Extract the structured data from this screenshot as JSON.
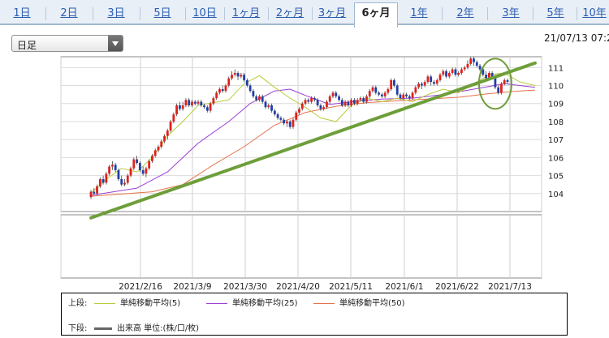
{
  "tabs": [
    {
      "label": "1日",
      "active": false
    },
    {
      "label": "2日",
      "active": false
    },
    {
      "label": "3日",
      "active": false
    },
    {
      "label": "5日",
      "active": false
    },
    {
      "label": "10日",
      "active": false
    },
    {
      "label": "1ヶ月",
      "active": false
    },
    {
      "label": "2ヶ月",
      "active": false
    },
    {
      "label": "3ヶ月",
      "active": false
    },
    {
      "label": "6ヶ月",
      "active": true
    },
    {
      "label": "1年",
      "active": false
    },
    {
      "label": "2年",
      "active": false
    },
    {
      "label": "3年",
      "active": false
    },
    {
      "label": "5年",
      "active": false
    },
    {
      "label": "10年",
      "active": false
    }
  ],
  "period_select": {
    "value": "日足"
  },
  "timestamp": "21/07/13 07:2",
  "colors": {
    "tab_link": "#2a5db0",
    "candle_up": "#e0201c",
    "candle_down": "#1f3fa8",
    "ma5": "#b9cc3a",
    "ma25": "#9b3ed6",
    "ma50": "#e5724a",
    "trendline": "#6e9e3a",
    "volume": "#666666"
  },
  "legend": {
    "upper_label": "上段:",
    "lower_label": "下段:",
    "ma5": "単純移動平均(5)",
    "ma25": "単純移動平均(25)",
    "ma50": "単純移動平均(50)",
    "volume": "出来高 単位:(株/口/枚)"
  },
  "chart_data": {
    "type": "candlestick",
    "x_ticks": [
      "2021/2/16",
      "2021/3/9",
      "2021/3/30",
      "2021/4/20",
      "2021/5/11",
      "2021/6/1",
      "2021/6/22",
      "2021/7/13"
    ],
    "y_ticks": [
      104,
      105,
      106,
      107,
      108,
      109,
      110,
      111
    ],
    "ylim": [
      103,
      111.6
    ],
    "moving_averages": [
      "ma5",
      "ma25",
      "ma50"
    ],
    "ma5": [
      [
        0,
        104.02
      ],
      [
        5,
        104.8
      ],
      [
        10,
        105.4
      ],
      [
        15,
        105.2
      ],
      [
        20,
        106.0
      ],
      [
        25,
        107.2
      ],
      [
        30,
        108.0
      ],
      [
        35,
        108.9
      ],
      [
        40,
        109.05
      ],
      [
        45,
        109.2
      ],
      [
        50,
        110.1
      ],
      [
        55,
        110.55
      ],
      [
        60,
        109.9
      ],
      [
        65,
        109.3
      ],
      [
        70,
        108.8
      ],
      [
        75,
        108.2
      ],
      [
        80,
        108.0
      ],
      [
        85,
        108.9
      ],
      [
        90,
        109.3
      ],
      [
        95,
        109.1
      ],
      [
        100,
        109.3
      ],
      [
        105,
        109.1
      ],
      [
        110,
        109.5
      ],
      [
        115,
        109.8
      ],
      [
        120,
        109.6
      ],
      [
        125,
        110.1
      ],
      [
        130,
        110.6
      ],
      [
        135,
        110.7
      ],
      [
        140,
        110.2
      ],
      [
        145,
        110.0
      ]
    ],
    "ma25": [
      [
        0,
        103.9
      ],
      [
        15,
        104.3
      ],
      [
        25,
        105.2
      ],
      [
        35,
        106.8
      ],
      [
        45,
        108.0
      ],
      [
        52,
        109.0
      ],
      [
        60,
        109.7
      ],
      [
        65,
        109.8
      ],
      [
        70,
        109.45
      ],
      [
        78,
        108.95
      ],
      [
        85,
        109.1
      ],
      [
        95,
        109.25
      ],
      [
        105,
        109.3
      ],
      [
        115,
        109.5
      ],
      [
        125,
        109.8
      ],
      [
        135,
        110.1
      ],
      [
        140,
        110.0
      ],
      [
        145,
        109.9
      ]
    ],
    "ma50": [
      [
        0,
        103.85
      ],
      [
        20,
        104.1
      ],
      [
        30,
        104.5
      ],
      [
        40,
        105.6
      ],
      [
        50,
        106.6
      ],
      [
        60,
        107.8
      ],
      [
        70,
        108.5
      ],
      [
        80,
        108.85
      ],
      [
        90,
        109.05
      ],
      [
        100,
        109.15
      ],
      [
        110,
        109.25
      ],
      [
        120,
        109.35
      ],
      [
        130,
        109.55
      ],
      [
        140,
        109.7
      ],
      [
        145,
        109.75
      ]
    ],
    "trendline": {
      "from": [
        0,
        102.65
      ],
      "to": [
        145,
        111.25
      ]
    },
    "candles": [
      [
        0,
        103.8,
        104.1,
        104.2,
        103.7
      ],
      [
        1,
        104.1,
        104.0,
        104.3,
        103.9
      ],
      [
        2,
        104.0,
        104.4,
        104.5,
        103.9
      ],
      [
        3,
        104.4,
        104.8,
        104.9,
        104.3
      ],
      [
        4,
        104.8,
        104.6,
        105.0,
        104.5
      ],
      [
        5,
        104.6,
        105.1,
        105.2,
        104.5
      ],
      [
        6,
        105.1,
        105.5,
        105.6,
        105.0
      ],
      [
        7,
        105.5,
        105.6,
        105.8,
        105.3
      ],
      [
        8,
        105.6,
        105.3,
        105.7,
        105.2
      ],
      [
        9,
        105.3,
        104.8,
        105.4,
        104.7
      ],
      [
        10,
        104.8,
        104.5,
        105.0,
        104.4
      ],
      [
        11,
        104.5,
        104.6,
        104.8,
        104.4
      ],
      [
        12,
        104.6,
        105.0,
        105.1,
        104.5
      ],
      [
        13,
        105.0,
        105.4,
        105.5,
        104.9
      ],
      [
        14,
        105.4,
        105.9,
        106.0,
        105.3
      ],
      [
        15,
        105.9,
        105.7,
        106.1,
        105.6
      ],
      [
        16,
        105.7,
        105.3,
        105.8,
        105.2
      ],
      [
        17,
        105.3,
        105.1,
        105.5,
        105.0
      ],
      [
        18,
        105.1,
        105.4,
        105.5,
        104.9
      ],
      [
        19,
        105.4,
        105.8,
        105.9,
        105.3
      ],
      [
        20,
        105.8,
        106.1,
        106.2,
        105.7
      ],
      [
        21,
        106.1,
        106.4,
        106.5,
        106.0
      ],
      [
        22,
        106.4,
        106.6,
        106.7,
        106.3
      ],
      [
        23,
        106.6,
        106.9,
        107.0,
        106.5
      ],
      [
        24,
        106.9,
        107.2,
        107.3,
        106.8
      ],
      [
        25,
        107.2,
        107.5,
        107.6,
        107.0
      ],
      [
        26,
        107.5,
        108.0,
        108.1,
        107.4
      ],
      [
        27,
        108.0,
        108.4,
        108.5,
        107.9
      ],
      [
        28,
        108.4,
        108.9,
        109.0,
        108.3
      ],
      [
        29,
        108.9,
        108.7,
        109.1,
        108.6
      ],
      [
        30,
        108.7,
        108.9,
        109.1,
        108.6
      ],
      [
        31,
        108.9,
        109.2,
        109.3,
        108.8
      ],
      [
        32,
        109.2,
        108.9,
        109.3,
        108.8
      ],
      [
        33,
        108.9,
        109.1,
        109.2,
        108.8
      ],
      [
        34,
        109.1,
        109.0,
        109.2,
        108.9
      ],
      [
        35,
        109.0,
        109.1,
        109.2,
        108.9
      ],
      [
        36,
        109.1,
        108.9,
        109.2,
        108.8
      ],
      [
        37,
        108.9,
        108.8,
        109.0,
        108.7
      ],
      [
        38,
        108.8,
        108.6,
        108.9,
        108.5
      ],
      [
        39,
        108.6,
        109.0,
        109.1,
        108.5
      ],
      [
        40,
        109.0,
        109.3,
        109.4,
        108.9
      ],
      [
        41,
        109.3,
        109.6,
        109.7,
        109.2
      ],
      [
        42,
        109.6,
        109.8,
        109.9,
        109.5
      ],
      [
        43,
        109.8,
        109.7,
        110.0,
        109.6
      ],
      [
        44,
        109.7,
        110.0,
        110.1,
        109.6
      ],
      [
        45,
        110.0,
        110.4,
        110.5,
        109.9
      ],
      [
        46,
        110.4,
        110.6,
        110.8,
        110.3
      ],
      [
        47,
        110.6,
        110.7,
        110.9,
        110.5
      ],
      [
        48,
        110.7,
        110.5,
        110.8,
        110.3
      ],
      [
        49,
        110.5,
        110.6,
        110.7,
        110.4
      ],
      [
        50,
        110.6,
        110.3,
        110.7,
        110.2
      ],
      [
        51,
        110.3,
        110.0,
        110.4,
        109.9
      ],
      [
        52,
        110.0,
        109.7,
        110.1,
        109.6
      ],
      [
        53,
        109.7,
        109.4,
        109.8,
        109.3
      ],
      [
        54,
        109.4,
        109.2,
        109.5,
        109.1
      ],
      [
        55,
        109.2,
        109.4,
        109.5,
        109.1
      ],
      [
        56,
        109.4,
        109.1,
        109.5,
        109.0
      ],
      [
        57,
        109.1,
        108.8,
        109.2,
        108.7
      ],
      [
        58,
        108.8,
        108.9,
        109.0,
        108.7
      ],
      [
        59,
        108.9,
        108.6,
        109.0,
        108.5
      ],
      [
        60,
        108.6,
        108.4,
        108.7,
        108.3
      ],
      [
        61,
        108.4,
        108.2,
        108.5,
        108.1
      ],
      [
        62,
        108.2,
        108.1,
        108.3,
        108.0
      ],
      [
        63,
        108.1,
        107.9,
        108.2,
        107.8
      ],
      [
        64,
        107.9,
        108.0,
        108.1,
        107.7
      ],
      [
        65,
        108.0,
        107.7,
        108.1,
        107.6
      ],
      [
        66,
        107.7,
        108.1,
        108.2,
        107.6
      ],
      [
        67,
        108.1,
        108.5,
        108.6,
        108.0
      ],
      [
        68,
        108.5,
        108.7,
        108.8,
        108.4
      ],
      [
        69,
        108.7,
        109.0,
        109.1,
        108.6
      ],
      [
        70,
        109.0,
        109.2,
        109.3,
        108.9
      ],
      [
        71,
        109.2,
        109.1,
        109.3,
        109.0
      ],
      [
        72,
        109.1,
        109.3,
        109.4,
        109.0
      ],
      [
        73,
        109.3,
        109.2,
        109.4,
        109.1
      ],
      [
        74,
        109.2,
        108.9,
        109.3,
        108.8
      ],
      [
        75,
        108.9,
        108.7,
        109.0,
        108.6
      ],
      [
        76,
        108.7,
        108.8,
        108.9,
        108.6
      ],
      [
        77,
        108.8,
        109.1,
        109.2,
        108.7
      ],
      [
        78,
        109.1,
        109.4,
        109.5,
        109.0
      ],
      [
        79,
        109.4,
        109.6,
        109.7,
        109.3
      ],
      [
        80,
        109.6,
        109.4,
        109.7,
        109.3
      ],
      [
        81,
        109.4,
        109.2,
        109.5,
        109.1
      ],
      [
        82,
        109.2,
        108.9,
        109.3,
        108.8
      ],
      [
        83,
        108.9,
        109.1,
        109.2,
        108.8
      ],
      [
        84,
        109.1,
        108.9,
        109.2,
        108.8
      ],
      [
        85,
        108.9,
        109.2,
        109.3,
        108.8
      ],
      [
        86,
        109.2,
        109.0,
        109.3,
        108.9
      ],
      [
        87,
        109.0,
        109.2,
        109.3,
        108.9
      ],
      [
        88,
        109.2,
        109.3,
        109.4,
        109.1
      ],
      [
        89,
        109.3,
        109.1,
        109.4,
        109.0
      ],
      [
        90,
        109.1,
        109.4,
        109.5,
        109.0
      ],
      [
        91,
        109.4,
        109.7,
        109.8,
        109.3
      ],
      [
        92,
        109.7,
        109.9,
        110.0,
        109.6
      ],
      [
        93,
        109.9,
        109.6,
        110.0,
        109.5
      ],
      [
        94,
        109.6,
        109.5,
        109.7,
        109.4
      ],
      [
        95,
        109.5,
        109.4,
        109.6,
        109.3
      ],
      [
        96,
        109.4,
        109.6,
        109.7,
        109.3
      ],
      [
        97,
        109.6,
        109.8,
        109.9,
        109.5
      ],
      [
        98,
        109.8,
        110.3,
        110.4,
        109.7
      ],
      [
        99,
        110.3,
        110.0,
        110.4,
        109.9
      ],
      [
        100,
        110.0,
        109.5,
        110.1,
        109.4
      ],
      [
        101,
        109.5,
        109.3,
        109.6,
        109.2
      ],
      [
        102,
        109.3,
        109.5,
        109.6,
        109.2
      ],
      [
        103,
        109.5,
        109.4,
        109.6,
        109.3
      ],
      [
        104,
        109.4,
        109.3,
        109.5,
        109.2
      ],
      [
        105,
        109.3,
        109.6,
        109.7,
        109.2
      ],
      [
        106,
        109.6,
        109.9,
        110.0,
        109.5
      ],
      [
        107,
        109.9,
        110.1,
        110.2,
        109.8
      ],
      [
        108,
        110.1,
        110.0,
        110.2,
        109.8
      ],
      [
        109,
        110.0,
        110.2,
        110.3,
        109.9
      ],
      [
        110,
        110.2,
        110.5,
        110.6,
        110.1
      ],
      [
        111,
        110.5,
        110.2,
        110.6,
        110.0
      ],
      [
        112,
        110.2,
        110.1,
        110.3,
        110.0
      ],
      [
        113,
        110.1,
        110.3,
        110.4,
        110.0
      ],
      [
        114,
        110.3,
        110.6,
        110.7,
        110.2
      ],
      [
        115,
        110.6,
        110.8,
        110.9,
        110.5
      ],
      [
        116,
        110.8,
        110.5,
        110.9,
        110.4
      ],
      [
        117,
        110.5,
        110.7,
        110.8,
        110.4
      ],
      [
        118,
        110.7,
        110.9,
        111.0,
        110.6
      ],
      [
        119,
        110.9,
        110.6,
        111.0,
        110.5
      ],
      [
        120,
        110.6,
        110.7,
        110.8,
        110.5
      ],
      [
        121,
        110.7,
        110.9,
        111.0,
        110.6
      ],
      [
        122,
        110.9,
        111.0,
        111.1,
        110.8
      ],
      [
        123,
        111.0,
        111.2,
        111.4,
        110.9
      ],
      [
        124,
        111.2,
        111.5,
        111.6,
        111.1
      ],
      [
        125,
        111.5,
        111.3,
        111.6,
        111.1
      ],
      [
        126,
        111.3,
        111.1,
        111.4,
        111.0
      ],
      [
        127,
        111.1,
        110.9,
        111.2,
        110.8
      ],
      [
        128,
        110.9,
        110.6,
        111.0,
        110.5
      ],
      [
        129,
        110.6,
        110.4,
        110.8,
        110.3
      ],
      [
        130,
        110.4,
        110.7,
        110.8,
        110.3
      ],
      [
        131,
        110.7,
        110.5,
        110.8,
        110.4
      ],
      [
        132,
        110.5,
        109.9,
        110.6,
        109.8
      ],
      [
        133,
        109.9,
        109.6,
        110.0,
        109.5
      ],
      [
        134,
        109.6,
        110.1,
        110.2,
        109.5
      ],
      [
        135,
        110.1,
        110.3,
        110.4,
        110.0
      ],
      [
        136,
        110.3,
        110.2,
        110.4,
        110.1
      ]
    ]
  }
}
